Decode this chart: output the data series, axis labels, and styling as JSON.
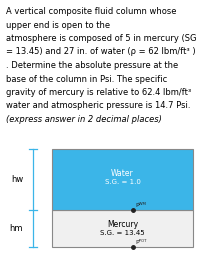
{
  "title_lines": [
    "A vertical composite fluid column whose",
    "upper end is open to the",
    "atmosphere is composed of 5 in mercury (SG",
    "= 13.45) and 27 in. of water (ρ = 62 lbm/ft³ )",
    ". Determine the absolute pressure at the",
    "base of the column in Psi. The specific",
    "gravity of mercury is relative to 62.4 lbm/ft³",
    "water and atmospheric pressure is 14.7 Psi.",
    "(express answer in 2 decimal places)"
  ],
  "water_color": "#3bb5e8",
  "mercury_color": "#f0f0f0",
  "border_color": "#888888",
  "axis_color": "#3bb5e8",
  "water_label": "Water",
  "water_sg": "S.G. = 1.0",
  "mercury_label": "Mercury",
  "mercury_sg": "S.G. = 13.45",
  "hw_label": "hw",
  "hm_label": "hm",
  "background_color": "#ffffff",
  "text_fontsize": 6.0,
  "diagram_label_fontsize": 5.5,
  "side_label_fontsize": 6.0
}
